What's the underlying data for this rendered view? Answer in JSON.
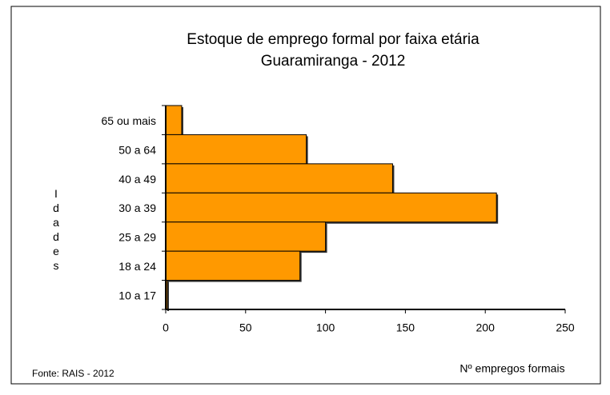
{
  "chart_data": {
    "type": "barh",
    "title": "Estoque de emprego formal por faixa etária",
    "subtitle": "Guaramiranga - 2012",
    "categories": [
      "65 ou mais",
      "50 a 64",
      "40 a 49",
      "30 a 39",
      "25 a 29",
      "18 a 24",
      "10 a 17"
    ],
    "values": [
      10,
      88,
      142,
      207,
      100,
      84,
      1
    ],
    "color": "#ff9900",
    "xlim": [
      0,
      250
    ],
    "xticks": [
      0,
      50,
      100,
      150,
      200,
      250
    ],
    "xlabel": "Nº empregos formais",
    "ylabel": "Idades",
    "source": "Fonte: RAIS - 2012",
    "grid": false
  }
}
